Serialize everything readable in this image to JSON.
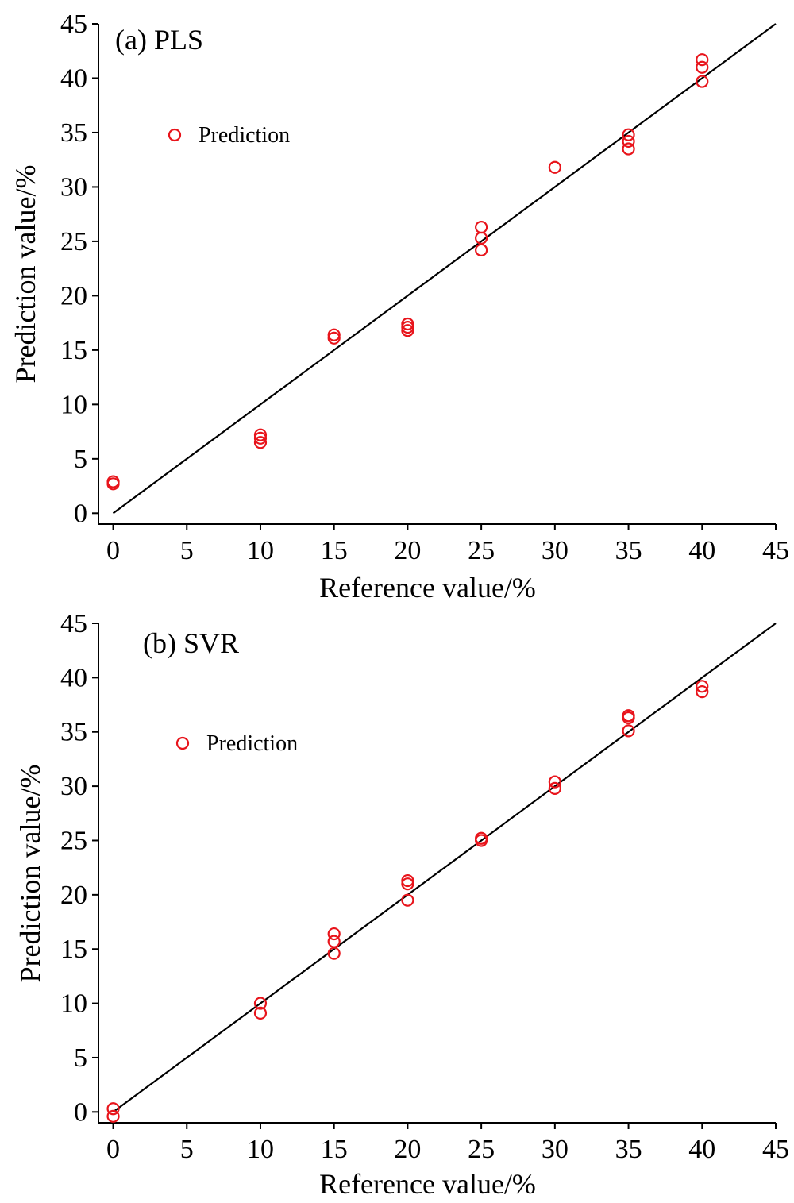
{
  "chart_data": [
    {
      "type": "scatter",
      "title": "(a)  PLS",
      "xlabel": "Reference value/%",
      "ylabel": "Prediction value/%",
      "xlim": [
        -1,
        45
      ],
      "ylim": [
        -1,
        45
      ],
      "xticks": [
        0,
        5,
        10,
        15,
        20,
        25,
        30,
        35,
        40,
        45
      ],
      "yticks": [
        0,
        5,
        10,
        15,
        20,
        25,
        30,
        35,
        40,
        45
      ],
      "grid": false,
      "legend_position": "upper-left",
      "marker_color": "#e8141b",
      "line_color": "#000000",
      "series": [
        {
          "name": "Prediction",
          "marker": "open-circle",
          "points": [
            [
              0,
              2.7
            ],
            [
              0,
              2.9
            ],
            [
              10,
              6.5
            ],
            [
              10,
              6.9
            ],
            [
              10,
              7.2
            ],
            [
              15,
              16.1
            ],
            [
              15,
              16.4
            ],
            [
              20,
              16.8
            ],
            [
              20,
              17.1
            ],
            [
              20,
              17.4
            ],
            [
              25,
              24.2
            ],
            [
              25,
              25.3
            ],
            [
              25,
              26.3
            ],
            [
              30,
              31.8
            ],
            [
              35,
              33.5
            ],
            [
              35,
              34.2
            ],
            [
              35,
              34.8
            ],
            [
              40,
              39.7
            ],
            [
              40,
              41.0
            ],
            [
              40,
              41.7
            ]
          ]
        }
      ],
      "reference_line": {
        "from": [
          0,
          0
        ],
        "to": [
          45,
          45
        ]
      }
    },
    {
      "type": "scatter",
      "title": "(b)  SVR",
      "xlabel": "Reference value/%",
      "ylabel": "Prediction value/%",
      "xlim": [
        -1,
        45
      ],
      "ylim": [
        -1,
        45
      ],
      "xticks": [
        0,
        5,
        10,
        15,
        20,
        25,
        30,
        35,
        40,
        45
      ],
      "yticks": [
        0,
        5,
        10,
        15,
        20,
        25,
        30,
        35,
        40,
        45
      ],
      "grid": false,
      "legend_position": "upper-left",
      "marker_color": "#e8141b",
      "line_color": "#000000",
      "series": [
        {
          "name": "Prediction",
          "marker": "open-circle",
          "points": [
            [
              0,
              -0.4
            ],
            [
              0,
              0.3
            ],
            [
              10,
              9.1
            ],
            [
              10,
              10.0
            ],
            [
              15,
              14.6
            ],
            [
              15,
              15.7
            ],
            [
              15,
              16.4
            ],
            [
              20,
              19.5
            ],
            [
              20,
              21.0
            ],
            [
              20,
              21.3
            ],
            [
              25,
              25.0
            ],
            [
              25,
              25.2
            ],
            [
              30,
              29.8
            ],
            [
              30,
              30.4
            ],
            [
              35,
              35.1
            ],
            [
              35,
              36.3
            ],
            [
              35,
              36.5
            ],
            [
              40,
              38.7
            ],
            [
              40,
              39.2
            ]
          ]
        }
      ],
      "reference_line": {
        "from": [
          0,
          0
        ],
        "to": [
          45,
          45
        ]
      }
    }
  ]
}
